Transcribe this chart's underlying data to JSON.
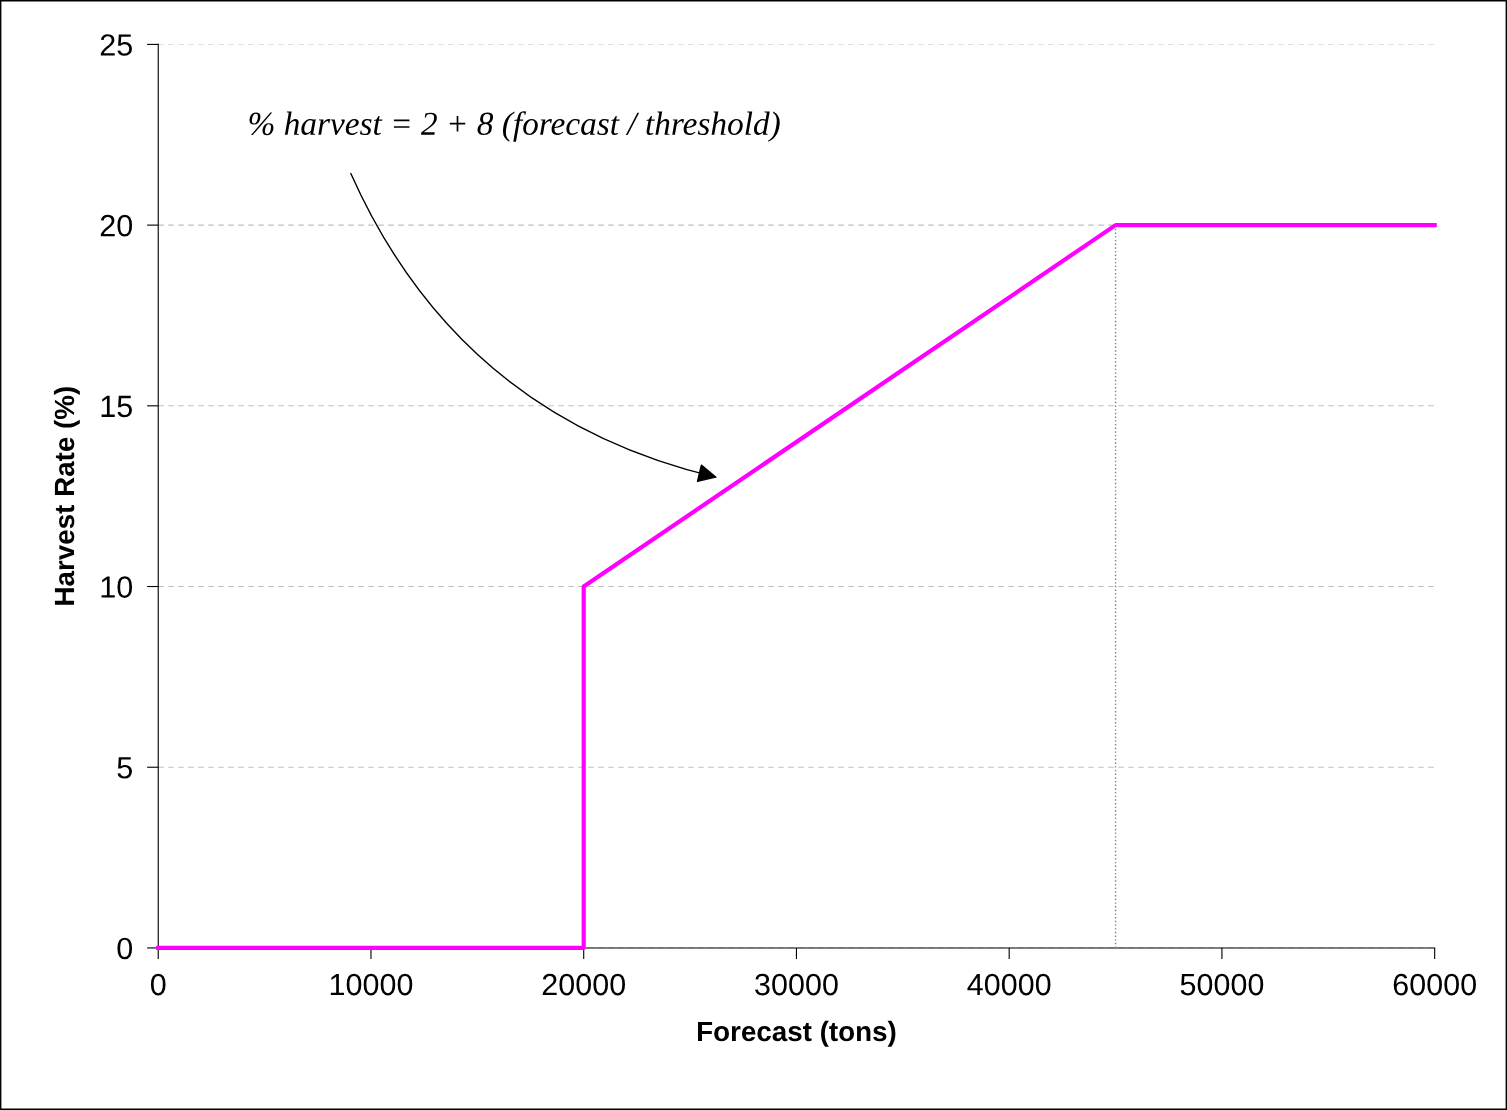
{
  "chart_data": {
    "type": "line",
    "xlabel": "Forecast (tons)",
    "ylabel": "Harvest Rate (%)",
    "series": [
      {
        "x": [
          0,
          20000,
          20000,
          45000,
          60000
        ],
        "values": [
          0,
          0,
          10,
          20,
          20
        ],
        "color": "#ff00ff",
        "line_style": "solid"
      },
      {
        "x": [
          45000,
          45000
        ],
        "values": [
          0,
          20
        ],
        "color": "#808080",
        "line_style": "dotted"
      }
    ],
    "xlim": [
      0,
      60000
    ],
    "xticks": [
      0,
      10000,
      20000,
      30000,
      40000,
      50000,
      60000
    ],
    "ylim": [
      0,
      25
    ],
    "yticks": [
      0,
      5,
      10,
      15,
      20,
      25
    ],
    "grid": "y",
    "annotations": [
      "% harvest = 2 + 8 (forecast / threshold)"
    ]
  }
}
